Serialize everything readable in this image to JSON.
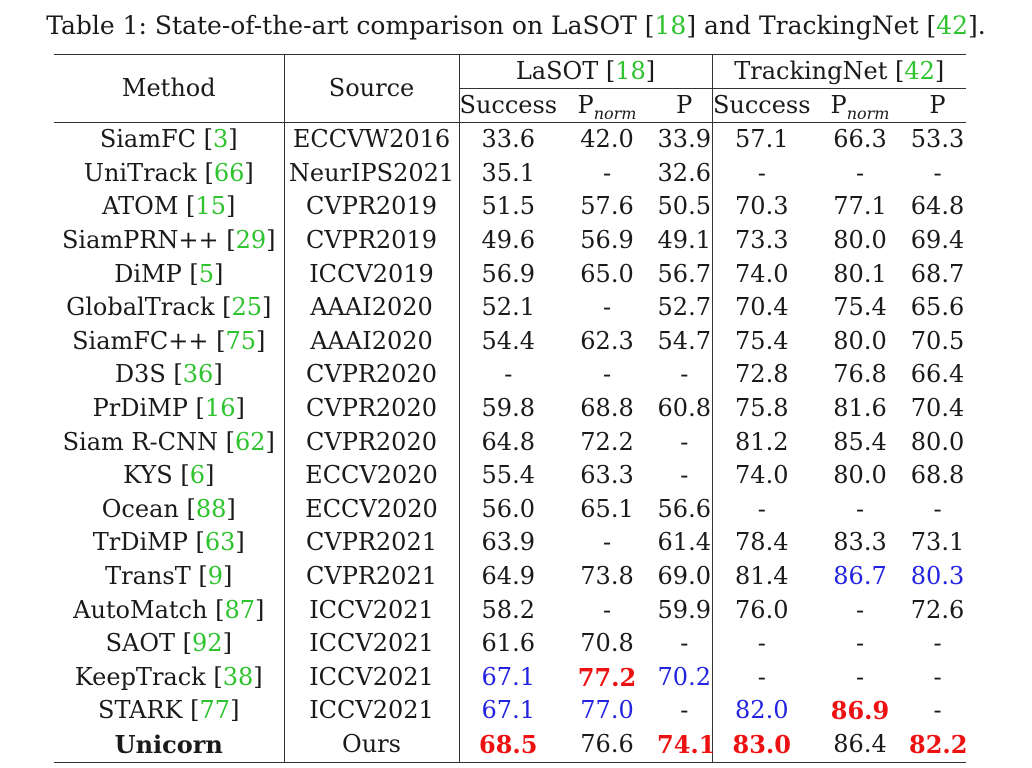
{
  "caption": {
    "prefix": "Table 1: State-of-the-art comparison on LaSOT [",
    "ref1": "18",
    "mid": "] and TrackingNet [",
    "ref2": "42",
    "suffix": "]."
  },
  "header": {
    "method": "Method",
    "source": "Source",
    "lasot": "LaSOT [",
    "lasot_ref": "18",
    "trackingnet": "TrackingNet [",
    "trackingnet_ref": "42",
    "close": "]",
    "success": "Success",
    "pnorm": "P",
    "pnorm_sub": "norm",
    "p": "P"
  },
  "rows": [
    {
      "name": "SiamFC [",
      "ref": "3",
      "source": "ECCVW2016",
      "values": [
        "33.6",
        "42.0",
        "33.9",
        "57.1",
        "66.3",
        "53.3"
      ],
      "styles": [
        "",
        "",
        "",
        "",
        "",
        ""
      ]
    },
    {
      "name": "UniTrack [",
      "ref": "66",
      "source": "NeurIPS2021",
      "values": [
        "35.1",
        "-",
        "32.6",
        "-",
        "-",
        "-"
      ],
      "styles": [
        "",
        "",
        "",
        "",
        "",
        ""
      ]
    },
    {
      "name": "ATOM [",
      "ref": "15",
      "source": "CVPR2019",
      "values": [
        "51.5",
        "57.6",
        "50.5",
        "70.3",
        "77.1",
        "64.8"
      ],
      "styles": [
        "",
        "",
        "",
        "",
        "",
        ""
      ]
    },
    {
      "name": "SiamPRN++ [",
      "ref": "29",
      "source": "CVPR2019",
      "values": [
        "49.6",
        "56.9",
        "49.1",
        "73.3",
        "80.0",
        "69.4"
      ],
      "styles": [
        "",
        "",
        "",
        "",
        "",
        ""
      ]
    },
    {
      "name": "DiMP [",
      "ref": "5",
      "source": "ICCV2019",
      "values": [
        "56.9",
        "65.0",
        "56.7",
        "74.0",
        "80.1",
        "68.7"
      ],
      "styles": [
        "",
        "",
        "",
        "",
        "",
        ""
      ]
    },
    {
      "name": "GlobalTrack [",
      "ref": "25",
      "source": "AAAI2020",
      "values": [
        "52.1",
        "-",
        "52.7",
        "70.4",
        "75.4",
        "65.6"
      ],
      "styles": [
        "",
        "",
        "",
        "",
        "",
        ""
      ]
    },
    {
      "name": "SiamFC++ [",
      "ref": "75",
      "source": "AAAI2020",
      "values": [
        "54.4",
        "62.3",
        "54.7",
        "75.4",
        "80.0",
        "70.5"
      ],
      "styles": [
        "",
        "",
        "",
        "",
        "",
        ""
      ]
    },
    {
      "name": "D3S [",
      "ref": "36",
      "source": "CVPR2020",
      "values": [
        "-",
        "-",
        "-",
        "72.8",
        "76.8",
        "66.4"
      ],
      "styles": [
        "",
        "",
        "",
        "",
        "",
        ""
      ]
    },
    {
      "name": "PrDiMP [",
      "ref": "16",
      "source": "CVPR2020",
      "values": [
        "59.8",
        "68.8",
        "60.8",
        "75.8",
        "81.6",
        "70.4"
      ],
      "styles": [
        "",
        "",
        "",
        "",
        "",
        ""
      ]
    },
    {
      "name": "Siam R-CNN [",
      "ref": "62",
      "source": "CVPR2020",
      "values": [
        "64.8",
        "72.2",
        "-",
        "81.2",
        "85.4",
        "80.0"
      ],
      "styles": [
        "",
        "",
        "",
        "",
        "",
        ""
      ]
    },
    {
      "name": "KYS [",
      "ref": "6",
      "source": "ECCV2020",
      "values": [
        "55.4",
        "63.3",
        "-",
        "74.0",
        "80.0",
        "68.8"
      ],
      "styles": [
        "",
        "",
        "",
        "",
        "",
        ""
      ]
    },
    {
      "name": "Ocean [",
      "ref": "88",
      "source": "ECCV2020",
      "values": [
        "56.0",
        "65.1",
        "56.6",
        "-",
        "-",
        "-"
      ],
      "styles": [
        "",
        "",
        "",
        "",
        "",
        ""
      ]
    },
    {
      "name": "TrDiMP [",
      "ref": "63",
      "source": "CVPR2021",
      "values": [
        "63.9",
        "-",
        "61.4",
        "78.4",
        "83.3",
        "73.1"
      ],
      "styles": [
        "",
        "",
        "",
        "",
        "",
        ""
      ]
    },
    {
      "name": "TransT [",
      "ref": "9",
      "source": "CVPR2021",
      "values": [
        "64.9",
        "73.8",
        "69.0",
        "81.4",
        "86.7",
        "80.3"
      ],
      "styles": [
        "",
        "",
        "",
        "",
        "blue",
        "blue"
      ]
    },
    {
      "name": "AutoMatch [",
      "ref": "87",
      "source": "ICCV2021",
      "values": [
        "58.2",
        "-",
        "59.9",
        "76.0",
        "-",
        "72.6"
      ],
      "styles": [
        "",
        "",
        "",
        "",
        "",
        ""
      ]
    },
    {
      "name": "SAOT [",
      "ref": "92",
      "source": "ICCV2021",
      "values": [
        "61.6",
        "70.8",
        "-",
        "-",
        "-",
        "-"
      ],
      "styles": [
        "",
        "",
        "",
        "",
        "",
        ""
      ]
    },
    {
      "name": "KeepTrack [",
      "ref": "38",
      "source": "ICCV2021",
      "values": [
        "67.1",
        "77.2",
        "70.2",
        "-",
        "-",
        "-"
      ],
      "styles": [
        "blue",
        "red",
        "blue",
        "",
        "",
        ""
      ]
    },
    {
      "name": "STARK [",
      "ref": "77",
      "source": "ICCV2021",
      "values": [
        "67.1",
        "77.0",
        "-",
        "82.0",
        "86.9",
        "-"
      ],
      "styles": [
        "blue",
        "blue",
        "",
        "blue",
        "red",
        ""
      ]
    },
    {
      "name": "Unicorn",
      "ref": "",
      "source": "Ours",
      "values": [
        "68.5",
        "76.6",
        "74.1",
        "83.0",
        "86.4",
        "82.2"
      ],
      "styles": [
        "red",
        "",
        "red",
        "red",
        "",
        "red"
      ],
      "bold_name": true
    }
  ],
  "colors": {
    "citation": "#2fc42f",
    "best": "#ee1111",
    "second": "#2424e0"
  }
}
